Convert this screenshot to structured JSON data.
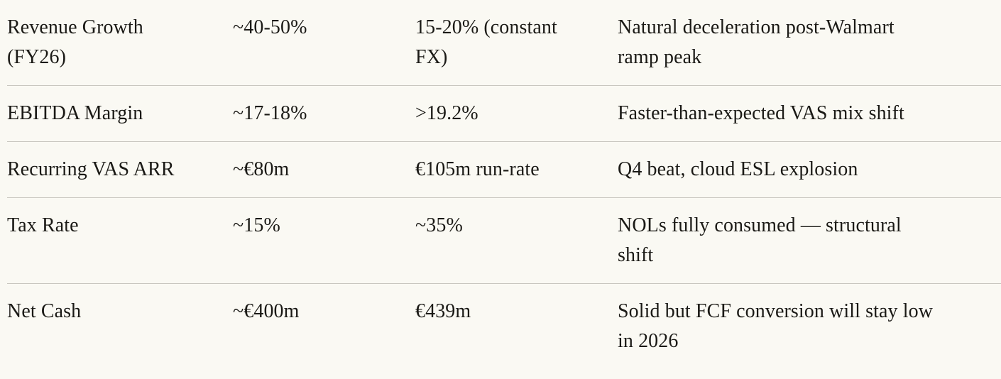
{
  "colors": {
    "background": "#faf9f3",
    "text": "#1b1a16",
    "divider": "#c9c7c0"
  },
  "table": {
    "description": "financial-metrics-comparison-table",
    "rows": [
      {
        "metric": "Revenue Growth\n(FY26)",
        "guidance": "~40-50%",
        "actual": "15-20% (constant\nFX)",
        "comment": "Natural deceleration post-Walmart\nramp peak"
      },
      {
        "metric": "EBITDA Margin",
        "guidance": "~17-18%",
        "actual": ">19.2%",
        "comment": "Faster-than-expected VAS mix shift"
      },
      {
        "metric": "Recurring VAS ARR",
        "guidance": "~€80m",
        "actual": "€105m run-rate",
        "comment": "Q4 beat, cloud ESL explosion"
      },
      {
        "metric": "Tax Rate",
        "guidance": "~15%",
        "actual": "~35%",
        "comment": "NOLs fully consumed — structural\nshift"
      },
      {
        "metric": "Net Cash",
        "guidance": "~€400m",
        "actual": "€439m",
        "comment": "Solid but FCF conversion will stay low\nin 2026"
      }
    ]
  }
}
